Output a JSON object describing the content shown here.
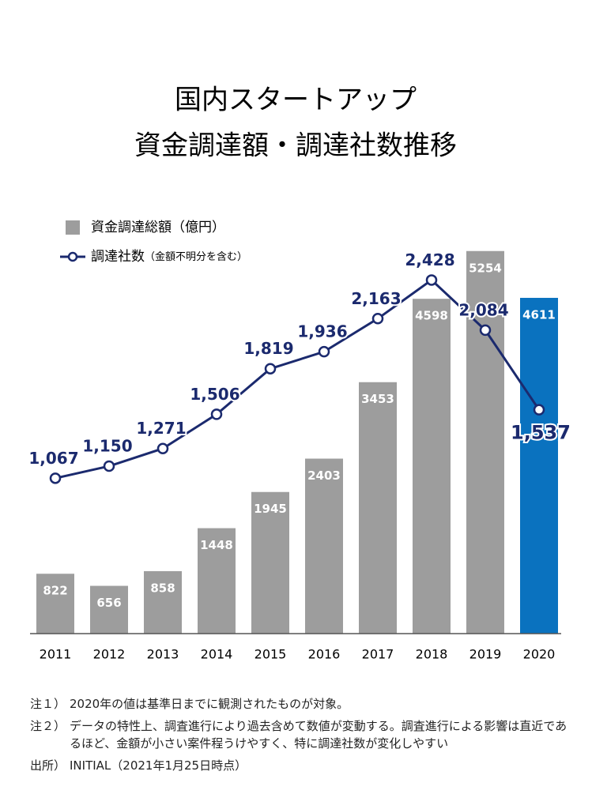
{
  "chart_data": {
    "type": "bar_line",
    "title": [
      "国内スタートアップ",
      "資金調達額・調達社数推移"
    ],
    "categories": [
      "2011",
      "2012",
      "2013",
      "2014",
      "2015",
      "2016",
      "2017",
      "2018",
      "2019",
      "2020"
    ],
    "series": [
      {
        "name": "資金調達総額（億円）",
        "type": "bar",
        "color": "#9d9d9d",
        "colors": [
          "#9d9d9d",
          "#9d9d9d",
          "#9d9d9d",
          "#9d9d9d",
          "#9d9d9d",
          "#9d9d9d",
          "#9d9d9d",
          "#9d9d9d",
          "#9d9d9d",
          "#0a72bf"
        ],
        "values": [
          822,
          656,
          858,
          1448,
          1945,
          2403,
          3453,
          4598,
          5254,
          4611
        ]
      },
      {
        "name": "調達社数",
        "name_note": "（金額不明分を含む）",
        "type": "line",
        "axis": "y2",
        "color": "#1b2a6e",
        "values": [
          1067,
          1150,
          1271,
          1506,
          1819,
          1936,
          2163,
          2428,
          2084,
          1537
        ],
        "value_labels": [
          "1,067",
          "1,150",
          "1,271",
          "1,506",
          "1,819",
          "1,936",
          "2,163",
          "2,428",
          "2,084",
          "1,537"
        ]
      }
    ],
    "ylim": [
      0,
      6000
    ],
    "y2lim": [
      0,
      3000
    ],
    "notes": [
      {
        "label": "注１）",
        "text": "2020年の値は基準日までに観測されたものが対象。"
      },
      {
        "label": "注２）",
        "text": "データの特性上、調査進行により過去含めて数値が変動する。調査進行による影響は直近であるほど、金額が小さい案件程うけやすく、特に調達社数が変化しやすい"
      },
      {
        "label": "出所）",
        "text": "INITIAL（2021年1月25日時点）"
      }
    ]
  }
}
